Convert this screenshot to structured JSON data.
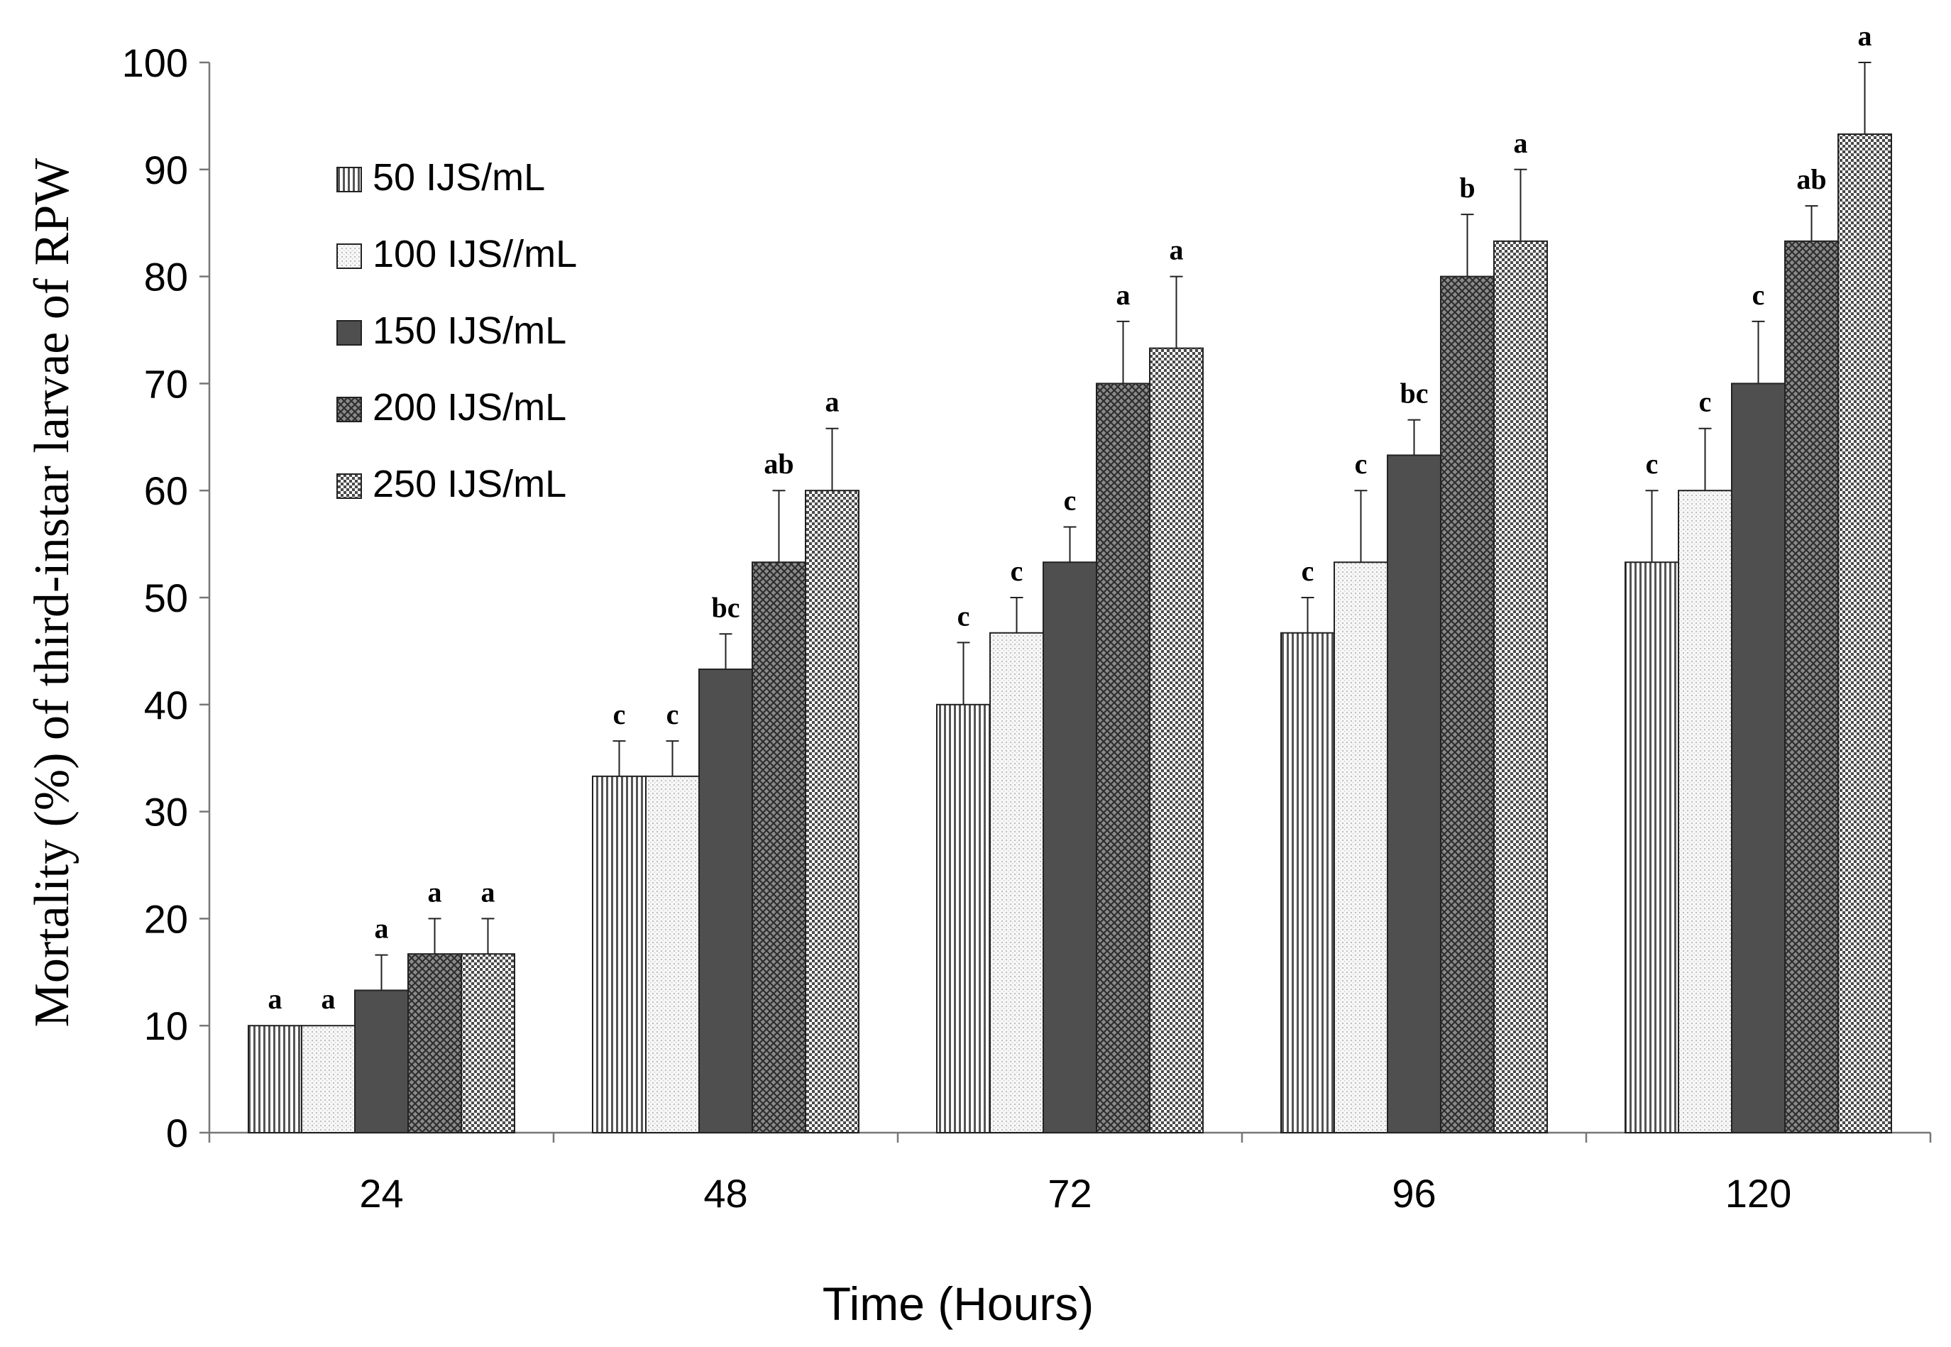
{
  "chart_data": {
    "type": "bar",
    "title": "",
    "xlabel": "Time (Hours)",
    "ylabel": "Mortality (%) of third-instar larvae of RPW",
    "ylim": [
      0,
      100
    ],
    "yticks": [
      0,
      10,
      20,
      30,
      40,
      50,
      60,
      70,
      80,
      90,
      100
    ],
    "categories": [
      "24",
      "48",
      "72",
      "96",
      "120"
    ],
    "legend_position": "top-left",
    "grid": false,
    "series": [
      {
        "name": "50 IJS/mL",
        "pattern": "vertical-lines",
        "values": [
          10,
          33.3,
          40,
          46.7,
          53.3
        ],
        "errors": [
          0,
          3.3,
          5.8,
          3.3,
          6.7
        ],
        "labels": [
          "a",
          "c",
          "c",
          "c",
          "c"
        ]
      },
      {
        "name": "100 IJS//mL",
        "pattern": "fine-dots",
        "values": [
          10,
          33.3,
          46.7,
          53.3,
          60
        ],
        "errors": [
          0,
          3.3,
          3.3,
          6.7,
          5.8
        ],
        "labels": [
          "a",
          "c",
          "c",
          "c",
          "c"
        ]
      },
      {
        "name": "150 IJS/mL",
        "pattern": "solid-dark",
        "values": [
          13.3,
          43.3,
          53.3,
          63.3,
          70
        ],
        "errors": [
          3.3,
          3.3,
          3.3,
          3.3,
          5.8
        ],
        "labels": [
          "a",
          "bc",
          "c",
          "bc",
          "c"
        ]
      },
      {
        "name": "200 IJS/mL",
        "pattern": "crosshatch",
        "values": [
          16.7,
          53.3,
          70,
          80,
          83.3
        ],
        "errors": [
          3.3,
          6.7,
          5.8,
          5.8,
          3.3
        ],
        "labels": [
          "a",
          "ab",
          "a",
          "b",
          "ab"
        ]
      },
      {
        "name": "250 IJS/mL",
        "pattern": "checker",
        "values": [
          16.7,
          60,
          73.3,
          83.3,
          93.3
        ],
        "errors": [
          3.3,
          5.8,
          6.7,
          6.7,
          6.7
        ],
        "labels": [
          "a",
          "a",
          "a",
          "a",
          "a"
        ]
      }
    ]
  }
}
